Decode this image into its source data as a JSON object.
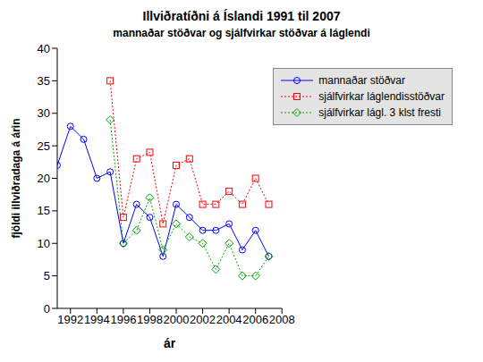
{
  "chart_data": {
    "type": "line",
    "title": "Illviðratíðni á Íslandi 1991 til 2007",
    "subtitle": "mannaðar stöðvar og sjálfvirkar stöðvar á láglendi",
    "x_label": "ár",
    "y_label": "fjöldi illviðradaga á árin",
    "x": [
      1991,
      1992,
      1993,
      1994,
      1995,
      1996,
      1997,
      1998,
      1999,
      2000,
      2001,
      2002,
      2003,
      2004,
      2005,
      2006,
      2007
    ],
    "series": [
      {
        "name": "mannaðar stöðvar",
        "color": "#0000ff",
        "marker": "circle",
        "line_style": "solid",
        "values": [
          22,
          28,
          26,
          20,
          21,
          10,
          16,
          14,
          8,
          16,
          14,
          12,
          12,
          13,
          9,
          12,
          8
        ]
      },
      {
        "name": "sjálfvirkar láglendisstöðvar",
        "color": "#ff0000",
        "marker": "square",
        "line_style": "dotted",
        "values": [
          null,
          null,
          null,
          null,
          35,
          14,
          23,
          24,
          13,
          22,
          23,
          16,
          16,
          18,
          16,
          20,
          16
        ]
      },
      {
        "name": "sjálfvirkar lágl. 3 klst fresti",
        "color": "#00a000",
        "marker": "diamond",
        "line_style": "dotted",
        "values": [
          null,
          null,
          null,
          null,
          29,
          10,
          12,
          17,
          9,
          13,
          11,
          10,
          6,
          10,
          5,
          5,
          8
        ]
      }
    ],
    "xlim": [
      1991,
      2008
    ],
    "xticks": [
      1992,
      1994,
      1996,
      1998,
      2000,
      2002,
      2004,
      2006,
      2008
    ],
    "ylim": [
      0,
      40
    ],
    "yticks": [
      0,
      5,
      10,
      15,
      20,
      25,
      30,
      35,
      40
    ],
    "grid": false,
    "legend": "top-right"
  }
}
